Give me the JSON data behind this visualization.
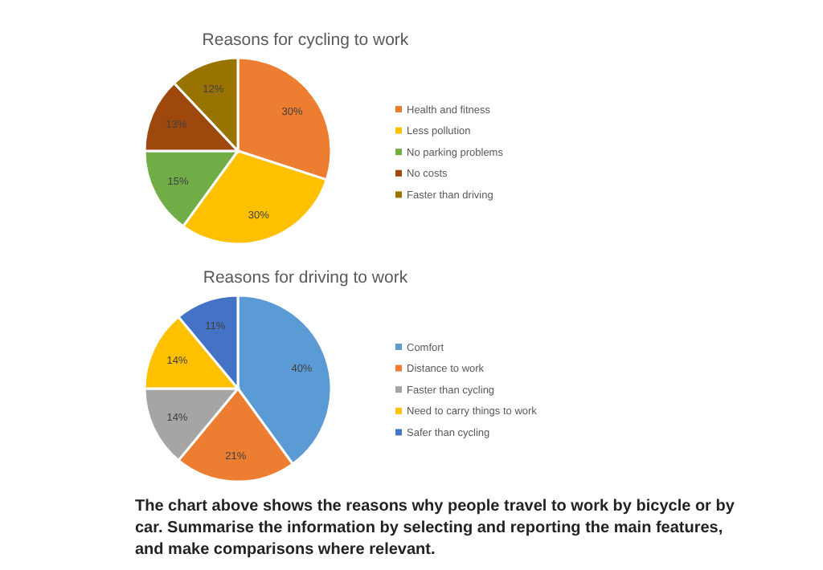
{
  "chart_data": [
    {
      "type": "pie",
      "title": "Reasons for cycling to work",
      "categories": [
        "Health and fitness",
        "Less pollution",
        "No parking problems",
        "No costs",
        "Faster than driving"
      ],
      "values": [
        30,
        30,
        15,
        13,
        12
      ],
      "colors": [
        "#ed7d31",
        "#ffc000",
        "#70ad47",
        "#9e480e",
        "#997300"
      ],
      "value_labels": [
        "30%",
        "30%",
        "15%",
        "13%",
        "12%"
      ],
      "legend": "right"
    },
    {
      "type": "pie",
      "title": "Reasons for driving to work",
      "categories": [
        "Comfort",
        "Distance to work",
        "Faster than cycling",
        "Need to carry things to work",
        "Safer than cycling"
      ],
      "values": [
        40,
        21,
        14,
        14,
        11
      ],
      "colors": [
        "#5b9bd5",
        "#ed7d31",
        "#a5a5a5",
        "#ffc000",
        "#4472c4"
      ],
      "value_labels": [
        "40%",
        "21%",
        "14%",
        "14%",
        "11%"
      ],
      "legend": "right",
      "annotations": [
        "The chart above shows the reasons why people travel to work by bicycle or by car. Summarise the information by selecting and reporting the main features, and make comparisons where relevant."
      ]
    }
  ]
}
